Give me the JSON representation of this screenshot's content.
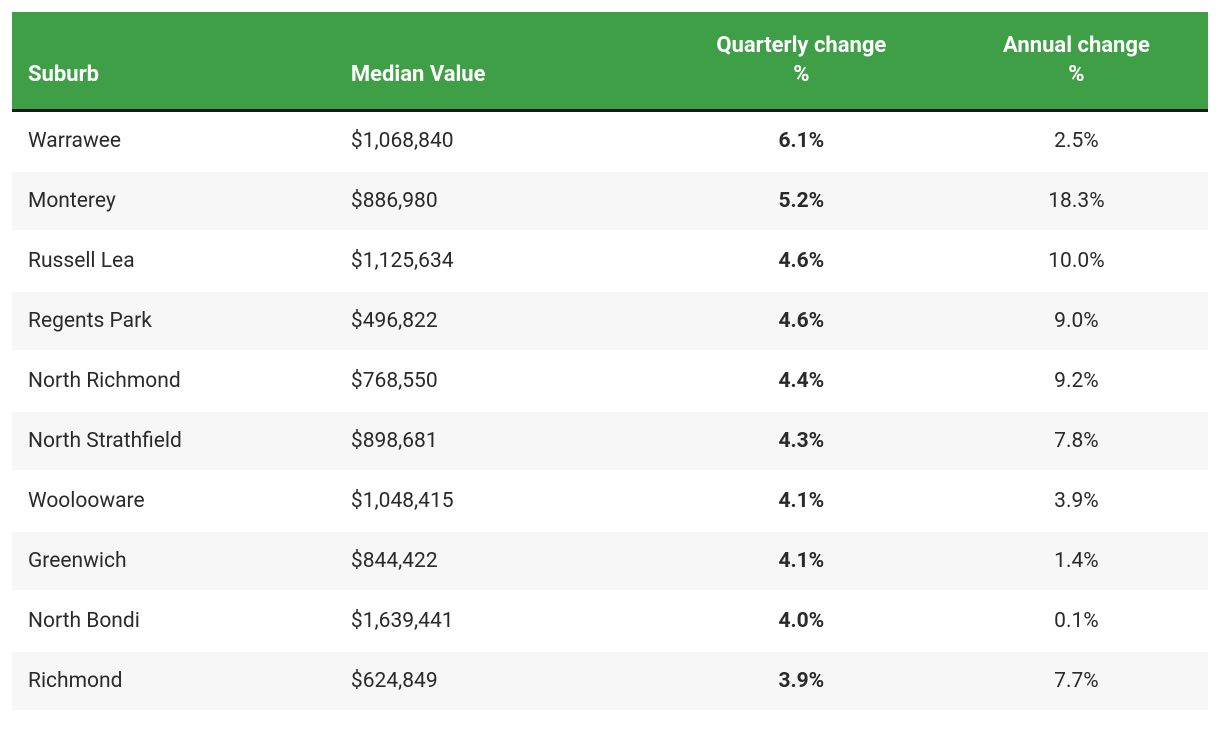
{
  "table": {
    "header_bg": "#3f9f47",
    "header_text_color": "#ffffff",
    "header_border_bottom": "#1a1a1a",
    "row_odd_bg": "#ffffff",
    "row_even_bg": "#f7f7f7",
    "text_color": "#2a2a2a",
    "columns": [
      {
        "label_line1": "Suburb",
        "label_line2": "",
        "align": "left",
        "width": "27%"
      },
      {
        "label_line1": "Median Value",
        "label_line2": "",
        "align": "left",
        "width": "27%"
      },
      {
        "label_line1": "Quarterly change",
        "label_line2": "%",
        "align": "center",
        "width": "24%"
      },
      {
        "label_line1": "Annual change",
        "label_line2": "%",
        "align": "center",
        "width": "22%"
      }
    ],
    "rows": [
      {
        "suburb": "Warrawee",
        "median": "$1,068,840",
        "quarterly": "6.1%",
        "annual": "2.5%"
      },
      {
        "suburb": "Monterey",
        "median": "$886,980",
        "quarterly": "5.2%",
        "annual": "18.3%"
      },
      {
        "suburb": "Russell Lea",
        "median": "$1,125,634",
        "quarterly": "4.6%",
        "annual": "10.0%"
      },
      {
        "suburb": "Regents Park",
        "median": "$496,822",
        "quarterly": "4.6%",
        "annual": "9.0%"
      },
      {
        "suburb": "North Richmond",
        "median": "$768,550",
        "quarterly": "4.4%",
        "annual": "9.2%"
      },
      {
        "suburb": "North Strathfield",
        "median": "$898,681",
        "quarterly": "4.3%",
        "annual": "7.8%"
      },
      {
        "suburb": "Woolooware",
        "median": "$1,048,415",
        "quarterly": "4.1%",
        "annual": "3.9%"
      },
      {
        "suburb": "Greenwich",
        "median": "$844,422",
        "quarterly": "4.1%",
        "annual": "1.4%"
      },
      {
        "suburb": "North Bondi",
        "median": "$1,639,441",
        "quarterly": "4.0%",
        "annual": "0.1%"
      },
      {
        "suburb": "Richmond",
        "median": "$624,849",
        "quarterly": "3.9%",
        "annual": "7.7%"
      }
    ],
    "font_size_header": 22,
    "font_size_body": 21,
    "cell_padding_v": 17,
    "cell_padding_h": 16
  }
}
